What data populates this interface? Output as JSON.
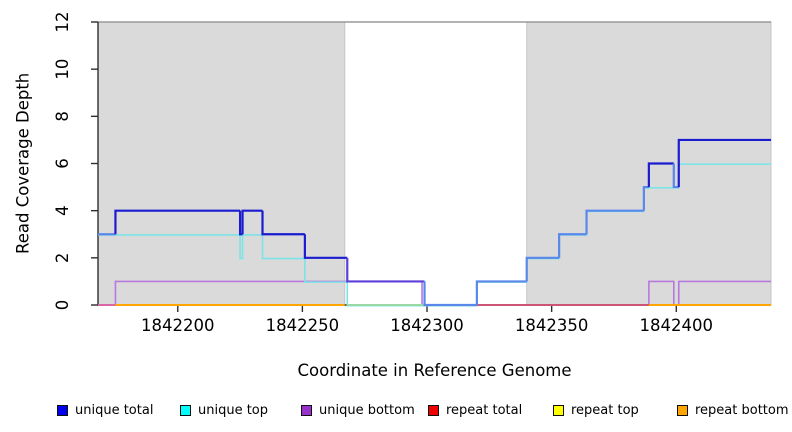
{
  "figure": {
    "xlabel": "Coordinate in Reference Genome",
    "ylabel": "Read Coverage Depth"
  },
  "chart_data": {
    "type": "line",
    "subtype": "step-coverage",
    "title": "",
    "xlabel": "Coordinate in Reference Genome",
    "ylabel": "Read Coverage Depth",
    "xlim": [
      1842168,
      1842438
    ],
    "ylim": [
      0,
      12
    ],
    "xticks": [
      1842200,
      1842250,
      1842300,
      1842350,
      1842400
    ],
    "yticks": [
      0,
      2,
      4,
      6,
      8,
      10,
      12
    ],
    "grid": false,
    "legend_position": "bottom",
    "top_rule_y": 12,
    "shaded_regions": [
      {
        "x1": 1842168,
        "x2": 1842267,
        "fill": "#DADADA"
      },
      {
        "x1": 1842340,
        "x2": 1842438,
        "fill": "#DADADA"
      }
    ],
    "overlap_colors": {
      "solo": "#1B1BD0",
      "with_top": "#5A87EA",
      "with_bottom": "#5C3FD8"
    },
    "visible_zero_segments": [
      {
        "x1": 1842168,
        "x2": 1842175,
        "color": "#D966A6"
      },
      {
        "x1": 1842175,
        "x2": 1842267,
        "color": "#FFA500"
      },
      {
        "x1": 1842268,
        "x2": 1842320,
        "color": "#9BD9A4"
      },
      {
        "x1": 1842320,
        "x2": 1842389,
        "color": "#CC5577"
      },
      {
        "x1": 1842389,
        "x2": 1842438,
        "color": "#FFA500"
      }
    ],
    "series": [
      {
        "key": "unique_total",
        "name": "unique total",
        "color": "#1B1BD0",
        "width": 2.2,
        "points": [
          [
            1842168,
            3
          ],
          [
            1842175,
            4
          ],
          [
            1842225,
            3
          ],
          [
            1842226,
            4
          ],
          [
            1842234,
            3
          ],
          [
            1842251,
            2
          ],
          [
            1842268,
            1
          ],
          [
            1842299,
            0
          ],
          [
            1842320,
            1
          ],
          [
            1842340,
            2
          ],
          [
            1842353,
            3
          ],
          [
            1842364,
            4
          ],
          [
            1842387,
            5
          ],
          [
            1842389,
            6
          ],
          [
            1842399,
            5
          ],
          [
            1842401,
            7
          ]
        ]
      },
      {
        "key": "unique_top",
        "name": "unique top",
        "color": "#7DE3E6",
        "width": 1.6,
        "points": [
          [
            1842168,
            3
          ],
          [
            1842225,
            2
          ],
          [
            1842226,
            3
          ],
          [
            1842234,
            2
          ],
          [
            1842251,
            1
          ],
          [
            1842268,
            0
          ],
          [
            1842320,
            1
          ],
          [
            1842340,
            2
          ],
          [
            1842353,
            3
          ],
          [
            1842364,
            4
          ],
          [
            1842387,
            5
          ],
          [
            1842401,
            6
          ]
        ]
      },
      {
        "key": "unique_bottom",
        "name": "unique bottom",
        "color": "#B878DE",
        "width": 1.6,
        "points": [
          [
            1842168,
            0
          ],
          [
            1842175,
            1
          ],
          [
            1842298,
            0
          ],
          [
            1842389,
            1
          ],
          [
            1842399,
            0
          ],
          [
            1842401,
            1
          ]
        ]
      },
      {
        "key": "repeat_total",
        "name": "repeat total",
        "color": "#CC5577",
        "width": 2,
        "points": [
          [
            1842168,
            0
          ]
        ]
      },
      {
        "key": "repeat_top",
        "name": "repeat top",
        "color": "#FFFF00",
        "width": 2,
        "points": [
          [
            1842168,
            0
          ]
        ]
      },
      {
        "key": "repeat_bottom",
        "name": "repeat bottom",
        "color": "#FFA500",
        "width": 2,
        "points": [
          [
            1842168,
            0
          ]
        ]
      }
    ]
  },
  "legend": {
    "items": [
      {
        "label": "unique total",
        "color": "#0000EE"
      },
      {
        "label": "unique top",
        "color": "#00FFFF"
      },
      {
        "label": "unique bottom",
        "color": "#9932CC"
      },
      {
        "label": "repeat total",
        "color": "#EE0000"
      },
      {
        "label": "repeat top",
        "color": "#FFFF00"
      },
      {
        "label": "repeat bottom",
        "color": "#FFA500"
      }
    ]
  }
}
